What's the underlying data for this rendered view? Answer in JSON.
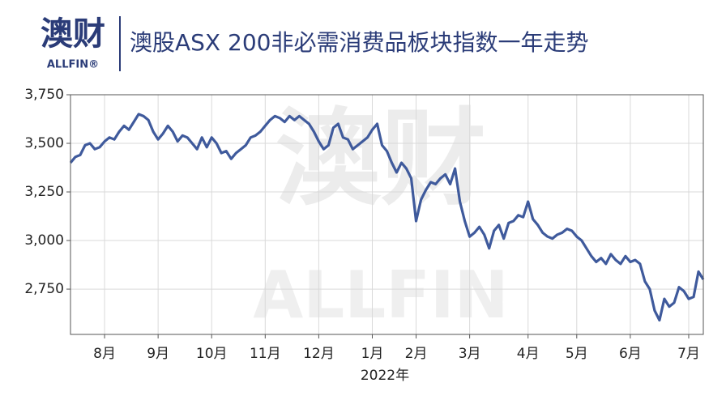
{
  "logo": {
    "text": "澳财",
    "subtext": "ALLFIN®"
  },
  "watermark": {
    "text": "澳财",
    "subtext": "ALLFIN"
  },
  "chart_data": {
    "type": "line",
    "title": "澳股ASX 200非必需消费品板块指数一年走势",
    "x_label": "2022年",
    "categories": [
      null,
      null,
      null,
      null,
      null,
      null,
      null,
      "8月",
      null,
      null,
      null,
      null,
      null,
      null,
      null,
      null,
      null,
      null,
      "9月",
      null,
      null,
      null,
      null,
      null,
      null,
      null,
      null,
      null,
      null,
      "10月",
      null,
      null,
      null,
      null,
      null,
      null,
      null,
      null,
      null,
      null,
      "11月",
      null,
      null,
      null,
      null,
      null,
      null,
      null,
      null,
      null,
      null,
      "12月",
      null,
      null,
      null,
      null,
      null,
      null,
      null,
      null,
      null,
      null,
      "1月",
      null,
      null,
      null,
      null,
      null,
      null,
      null,
      null,
      "2月",
      null,
      null,
      null,
      null,
      null,
      null,
      null,
      null,
      null,
      null,
      "3月",
      null,
      null,
      null,
      null,
      null,
      null,
      null,
      null,
      null,
      null,
      null,
      "4月",
      null,
      null,
      null,
      null,
      null,
      null,
      null,
      null,
      null,
      "5月",
      null,
      null,
      null,
      null,
      null,
      null,
      null,
      null,
      null,
      null,
      "6月",
      null,
      null,
      null,
      null,
      null,
      null,
      null,
      null,
      null,
      null,
      null,
      "7月",
      null,
      null,
      null
    ],
    "series": [
      {
        "name": "ASX 200非必需消费品",
        "color": "#3f5a9c",
        "values": [
          3400,
          3430,
          3440,
          3490,
          3500,
          3470,
          3480,
          3510,
          3530,
          3520,
          3560,
          3590,
          3570,
          3610,
          3650,
          3640,
          3620,
          3560,
          3520,
          3550,
          3590,
          3560,
          3510,
          3540,
          3530,
          3500,
          3470,
          3530,
          3480,
          3530,
          3500,
          3450,
          3460,
          3420,
          3450,
          3470,
          3490,
          3530,
          3540,
          3560,
          3590,
          3620,
          3640,
          3630,
          3610,
          3640,
          3620,
          3640,
          3620,
          3600,
          3560,
          3510,
          3470,
          3490,
          3580,
          3600,
          3530,
          3520,
          3470,
          3490,
          3510,
          3530,
          3570,
          3600,
          3490,
          3460,
          3400,
          3350,
          3400,
          3370,
          3320,
          3100,
          3210,
          3260,
          3300,
          3290,
          3320,
          3340,
          3290,
          3370,
          3200,
          3100,
          3020,
          3040,
          3070,
          3030,
          2960,
          3050,
          3080,
          3010,
          3090,
          3100,
          3130,
          3120,
          3200,
          3110,
          3080,
          3040,
          3020,
          3010,
          3030,
          3040,
          3060,
          3050,
          3020,
          3000,
          2960,
          2920,
          2890,
          2910,
          2880,
          2930,
          2900,
          2880,
          2920,
          2890,
          2900,
          2880,
          2790,
          2750,
          2640,
          2590,
          2700,
          2660,
          2680,
          2760,
          2740,
          2700,
          2710,
          2840,
          2800
        ]
      }
    ],
    "ylim": [
      2517,
      3750
    ],
    "yticks": [
      {
        "value": 2750,
        "label": "2,750"
      },
      {
        "value": 3000,
        "label": "3,000"
      },
      {
        "value": 3250,
        "label": "3,250"
      },
      {
        "value": 3500,
        "label": "3,500"
      },
      {
        "value": 3750,
        "label": "3,750"
      }
    ],
    "grid": true
  }
}
